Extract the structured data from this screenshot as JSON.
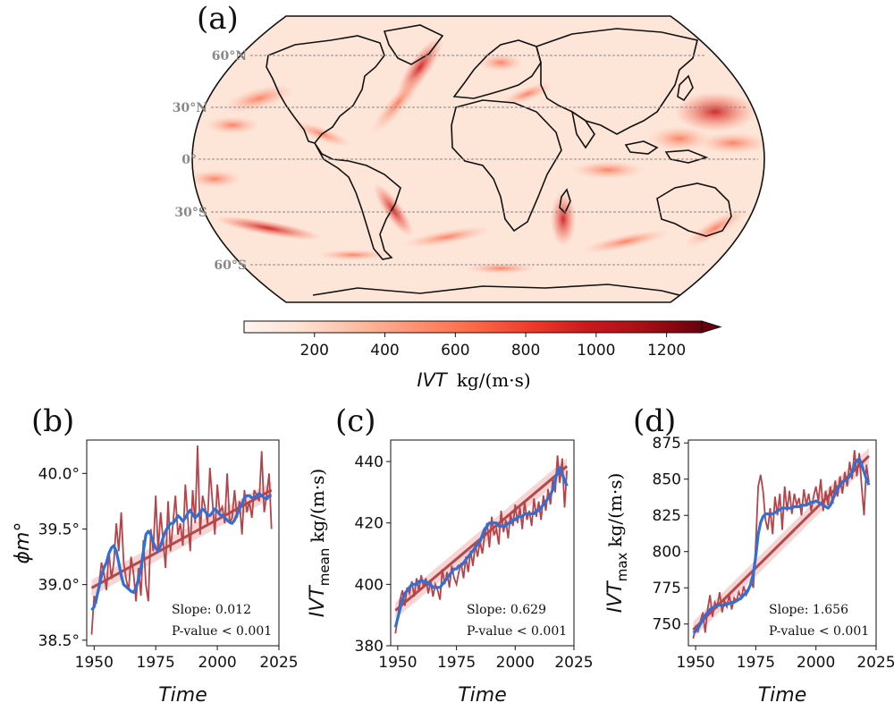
{
  "map_panel": {
    "label": "(a)",
    "lat_labels": [
      "60°N",
      "30°N",
      "0°",
      "30°S",
      "60°S"
    ],
    "colorbar": {
      "ticks": [
        "200",
        "400",
        "600",
        "800",
        "1000",
        "1200"
      ],
      "label_var": "IVT",
      "label_unit": "kg/(m·s)",
      "range": [
        0,
        1300
      ],
      "colors": [
        "#fff5f0",
        "#fee0d2",
        "#fcbba1",
        "#fc9272",
        "#fb6a4a",
        "#ef3b2c",
        "#cb181d",
        "#a50f15",
        "#67000d"
      ]
    }
  },
  "chart_data": [
    {
      "type": "line",
      "label": "(b)",
      "xlabel": "Time",
      "ylabel": "ϕm°",
      "xlim": [
        1947,
        2025
      ],
      "ylim": [
        38.45,
        40.3
      ],
      "xticks": [
        "1950",
        "1975",
        "2000",
        "2025"
      ],
      "yticks": [
        "38.5°",
        "39.0°",
        "39.5°",
        "40.0°"
      ],
      "ytick_values": [
        38.5,
        39.0,
        39.5,
        40.0
      ],
      "slope_text": "Slope: 0.012",
      "pvalue_text": "P-value < 0.001",
      "x_start": 1949,
      "raw_values": [
        38.55,
        38.9,
        38.85,
        39.0,
        39.2,
        39.1,
        38.95,
        39.3,
        39.05,
        39.2,
        39.55,
        39.3,
        39.65,
        39.2,
        39.05,
        38.95,
        39.25,
        39.1,
        38.85,
        39.15,
        38.9,
        39.4,
        39.0,
        38.85,
        39.5,
        39.3,
        39.8,
        39.3,
        39.65,
        39.4,
        39.15,
        39.75,
        39.3,
        39.55,
        39.8,
        39.45,
        39.55,
        39.35,
        39.9,
        39.6,
        39.3,
        39.85,
        39.55,
        40.25,
        39.45,
        39.8,
        39.7,
        39.55,
        40.05,
        39.75,
        39.45,
        39.9,
        39.65,
        39.7,
        39.55,
        40.0,
        39.55,
        39.6,
        39.85,
        39.6,
        39.75,
        39.45,
        39.85,
        39.65,
        39.75,
        39.6,
        39.85,
        39.8,
        39.75,
        40.2,
        39.65,
        39.8,
        40.0,
        39.5
      ],
      "smooth_values": [
        38.77,
        38.8,
        38.88,
        38.98,
        39.08,
        39.15,
        39.2,
        39.28,
        39.33,
        39.35,
        39.3,
        39.2,
        39.08,
        39.0,
        38.98,
        38.96,
        38.94,
        38.93,
        38.97,
        39.05,
        39.15,
        39.3,
        39.45,
        39.48,
        39.45,
        39.38,
        39.33,
        39.3,
        39.35,
        39.42,
        39.48,
        39.52,
        39.55,
        39.55,
        39.58,
        39.62,
        39.6,
        39.57,
        39.6,
        39.64,
        39.67,
        39.63,
        39.6,
        39.62,
        39.65,
        39.68,
        39.66,
        39.63,
        39.62,
        39.65,
        39.68,
        39.66,
        39.63,
        39.62,
        39.6,
        39.58,
        39.56,
        39.55,
        39.58,
        39.63,
        39.68,
        39.73,
        39.78,
        39.8,
        39.8,
        39.78,
        39.78,
        39.8,
        39.82,
        39.8,
        39.78,
        39.77,
        39.8,
        39.8
      ],
      "trend_start": 38.97,
      "trend_end": 39.85
    },
    {
      "type": "line",
      "label": "(c)",
      "xlabel": "Time",
      "ylabel_var": "IVT",
      "ylabel_sub": "mean",
      "ylabel_unit": "kg/(m·s)",
      "xlim": [
        1947,
        2025
      ],
      "ylim": [
        380,
        447
      ],
      "xticks": [
        "1950",
        "1975",
        "2000",
        "2025"
      ],
      "yticks": [
        "380",
        "400",
        "420",
        "440"
      ],
      "ytick_values": [
        380,
        400,
        420,
        440
      ],
      "slope_text": "Slope: 0.629",
      "pvalue_text": "P-value < 0.001",
      "x_start": 1949,
      "raw_values": [
        384,
        389,
        395,
        398,
        393,
        399,
        397,
        401,
        396,
        402,
        398,
        403,
        399,
        402,
        397,
        401,
        396,
        400,
        398,
        395,
        405,
        400,
        404,
        399,
        406,
        402,
        400,
        404,
        407,
        402,
        409,
        404,
        411,
        406,
        413,
        409,
        414,
        410,
        416,
        420,
        412,
        422,
        416,
        418,
        413,
        424,
        417,
        421,
        415,
        423,
        419,
        426,
        420,
        425,
        418,
        427,
        421,
        424,
        419,
        428,
        422,
        427,
        421,
        429,
        424,
        431,
        426,
        434,
        430,
        442,
        433,
        441,
        425,
        437
      ],
      "smooth_values": [
        386,
        389,
        392,
        395,
        397,
        398,
        399,
        400,
        400,
        400,
        401,
        401,
        401,
        401,
        400,
        400,
        399,
        399,
        399,
        399,
        400,
        401,
        402,
        403,
        404,
        405,
        405,
        406,
        406,
        407,
        408,
        409,
        410,
        411,
        412,
        413,
        414,
        416,
        418,
        419,
        420,
        420,
        420,
        420,
        419,
        419,
        419,
        419,
        420,
        420,
        421,
        421,
        422,
        422,
        422,
        423,
        423,
        423,
        423,
        423,
        424,
        424,
        425,
        426,
        427,
        428,
        429,
        431,
        434,
        437,
        438,
        436,
        434,
        432
      ],
      "trend_start": 391.5,
      "trend_end": 438.5
    },
    {
      "type": "line",
      "label": "(d)",
      "xlabel": "Time",
      "ylabel_var": "IVT",
      "ylabel_sub": "max",
      "ylabel_unit": "kg/(m·s)",
      "xlim": [
        1947,
        2025
      ],
      "ylim": [
        735,
        877
      ],
      "xticks": [
        "1950",
        "1975",
        "2000",
        "2025"
      ],
      "yticks": [
        "750",
        "775",
        "800",
        "825",
        "850",
        "875"
      ],
      "ytick_values": [
        750,
        775,
        800,
        825,
        850,
        875
      ],
      "slope_text": "Slope: 1.656",
      "pvalue_text": "P-value < 0.001",
      "x_start": 1949,
      "raw_values": [
        740,
        748,
        745,
        752,
        758,
        744,
        760,
        770,
        755,
        765,
        762,
        772,
        758,
        766,
        762,
        770,
        760,
        768,
        766,
        772,
        768,
        776,
        770,
        773,
        780,
        775,
        806,
        845,
        853,
        842,
        822,
        815,
        830,
        812,
        838,
        825,
        840,
        815,
        845,
        828,
        842,
        826,
        840,
        832,
        837,
        825,
        843,
        832,
        840,
        828,
        838,
        845,
        835,
        850,
        828,
        842,
        832,
        845,
        833,
        849,
        838,
        852,
        840,
        855,
        845,
        862,
        850,
        870,
        852,
        868,
        845,
        825,
        860,
        848
      ],
      "smooth_values": [
        744,
        745,
        747,
        750,
        753,
        756,
        758,
        760,
        761,
        762,
        763,
        763,
        763,
        763,
        764,
        764,
        765,
        765,
        766,
        767,
        768,
        770,
        772,
        774,
        778,
        785,
        797,
        812,
        820,
        824,
        826,
        826,
        826,
        826,
        827,
        828,
        829,
        830,
        830,
        830,
        830,
        830,
        831,
        831,
        831,
        832,
        832,
        832,
        833,
        834,
        834,
        835,
        834,
        833,
        832,
        831,
        830,
        832,
        836,
        840,
        843,
        846,
        848,
        849,
        850,
        852,
        855,
        860,
        863,
        864,
        860,
        855,
        850,
        846
      ],
      "trend_start": 746,
      "trend_end": 866
    }
  ]
}
